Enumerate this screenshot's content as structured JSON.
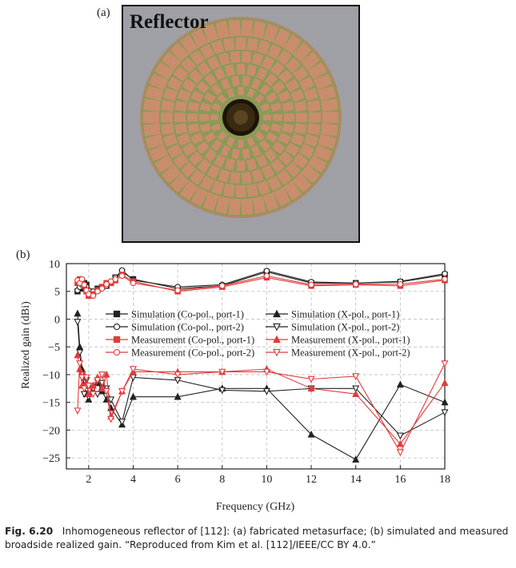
{
  "panel_a": {
    "label": "(a)",
    "title": "Reflector",
    "colors": {
      "copper": "#c98d6d",
      "substrate": "#8a9a55",
      "background": "#9ea0a6",
      "center": "#3a2a12"
    }
  },
  "panel_b": {
    "label": "(b)"
  },
  "chart_data": {
    "type": "line",
    "xlabel": "Frequency (GHz)",
    "ylabel": "Realized gain (dBi)",
    "xlim": [
      1,
      18
    ],
    "ylim": [
      -27,
      10
    ],
    "xticks": [
      2,
      4,
      6,
      8,
      10,
      12,
      14,
      16,
      18
    ],
    "yticks": [
      10,
      5,
      0,
      -5,
      -10,
      -15,
      -20,
      -25
    ],
    "grid": true,
    "legend_position": "center",
    "series": [
      {
        "name": "Simulation (Co-pol., port-1)",
        "color": "#222222",
        "marker": "square-filled",
        "x": [
          1.5,
          1.6,
          1.7,
          1.8,
          1.9,
          2.0,
          2.2,
          2.4,
          2.6,
          2.8,
          3.0,
          3.2,
          3.5,
          4,
          6,
          8,
          10,
          12,
          14,
          16,
          18
        ],
        "y": [
          5.0,
          6.0,
          5.5,
          6.5,
          6.2,
          5.0,
          4.8,
          5.5,
          5.8,
          6.0,
          6.5,
          7.5,
          8.5,
          7.2,
          5.5,
          6.0,
          8.5,
          6.5,
          6.5,
          6.7,
          8.0
        ]
      },
      {
        "name": "Simulation (Co-pol., port-2)",
        "color": "#222222",
        "marker": "circle-open",
        "x": [
          1.5,
          1.6,
          1.7,
          1.8,
          1.9,
          2.0,
          2.2,
          2.4,
          2.6,
          2.8,
          3.0,
          3.2,
          3.5,
          4,
          6,
          8,
          10,
          12,
          14,
          16,
          18
        ],
        "y": [
          5.2,
          5.8,
          6.2,
          6.0,
          5.8,
          5.2,
          5.0,
          5.3,
          5.6,
          6.0,
          6.8,
          7.5,
          8.8,
          7.0,
          5.8,
          6.2,
          8.7,
          6.7,
          6.5,
          6.8,
          8.2
        ]
      },
      {
        "name": "Measurement (Co-pol., port-1)",
        "color": "#e23b3b",
        "marker": "square-filled",
        "x": [
          1.5,
          1.6,
          1.7,
          1.8,
          1.9,
          2.0,
          2.2,
          2.4,
          2.6,
          2.8,
          3.0,
          3.2,
          3.5,
          4,
          6,
          8,
          10,
          12,
          14,
          16,
          18
        ],
        "y": [
          6.5,
          7.2,
          6.8,
          6.0,
          5.0,
          4.2,
          4.5,
          5.2,
          5.8,
          6.5,
          6.5,
          7.0,
          8.0,
          6.8,
          5.0,
          5.8,
          7.5,
          6.0,
          6.2,
          6.0,
          7.0
        ]
      },
      {
        "name": "Measurement (Co-pol., port-2)",
        "color": "#e23b3b",
        "marker": "circle-open",
        "x": [
          1.5,
          1.6,
          1.7,
          1.8,
          1.9,
          2.0,
          2.2,
          2.4,
          2.6,
          2.8,
          3.0,
          3.2,
          3.5,
          4,
          6,
          8,
          10,
          12,
          14,
          16,
          18
        ],
        "y": [
          7.0,
          6.5,
          7.2,
          6.2,
          5.2,
          4.5,
          4.2,
          5.0,
          5.5,
          6.3,
          6.8,
          7.2,
          7.8,
          6.5,
          5.2,
          6.0,
          7.8,
          6.2,
          6.3,
          6.3,
          7.2
        ]
      },
      {
        "name": "Simulation (X-pol., port-1)",
        "color": "#222222",
        "marker": "triangle-up-filled",
        "x": [
          1.5,
          1.6,
          1.7,
          1.8,
          1.9,
          2.0,
          2.2,
          2.4,
          2.6,
          2.8,
          3.0,
          3.5,
          4,
          6,
          8,
          10,
          12,
          14,
          16,
          18
        ],
        "y": [
          1.0,
          -5.0,
          -9.0,
          -12.0,
          -13.5,
          -14.5,
          -12.0,
          -11.5,
          -13.0,
          -14.5,
          -16.0,
          -19.0,
          -14.0,
          -14.0,
          -12.5,
          -12.5,
          -20.8,
          -25.3,
          -11.8,
          -15.0
        ]
      },
      {
        "name": "Simulation (X-pol., port-2)",
        "color": "#222222",
        "marker": "triangle-down-open",
        "x": [
          1.5,
          1.6,
          1.7,
          1.8,
          1.9,
          2.0,
          2.2,
          2.4,
          2.6,
          2.8,
          3.0,
          3.5,
          4,
          6,
          8,
          10,
          12,
          14,
          16,
          18
        ],
        "y": [
          -0.5,
          -6.0,
          -10.0,
          -13.5,
          -11.0,
          -14.0,
          -12.5,
          -13.5,
          -11.5,
          -12.5,
          -14.5,
          -18.5,
          -10.5,
          -11.0,
          -12.8,
          -13.0,
          -12.5,
          -12.5,
          -21.0,
          -16.8
        ]
      },
      {
        "name": "Measurement (X-pol., port-1)",
        "color": "#e23b3b",
        "marker": "triangle-up-filled",
        "x": [
          1.5,
          1.6,
          1.7,
          1.8,
          1.9,
          2.0,
          2.2,
          2.4,
          2.6,
          2.8,
          3.0,
          3.5,
          4,
          6,
          8,
          10,
          12,
          14,
          16,
          18
        ],
        "y": [
          -6.5,
          -9.0,
          -12.0,
          -10.0,
          -11.5,
          -13.5,
          -12.0,
          -10.5,
          -12.5,
          -10.0,
          -17.5,
          -13.0,
          -9.5,
          -9.5,
          -9.5,
          -9.0,
          -12.5,
          -13.5,
          -22.5,
          -11.5
        ]
      },
      {
        "name": "Measurement (X-pol., port-2)",
        "color": "#e23b3b",
        "marker": "triangle-down-open",
        "x": [
          1.5,
          1.6,
          1.7,
          1.8,
          1.9,
          2.0,
          2.2,
          2.4,
          2.6,
          2.8,
          3.0,
          3.5,
          4,
          6,
          8,
          10,
          12,
          14,
          16,
          18
        ],
        "y": [
          -16.5,
          -8.0,
          -10.5,
          -12.5,
          -10.5,
          -12.0,
          -13.5,
          -11.0,
          -10.0,
          -13.0,
          -18.0,
          -13.0,
          -9.0,
          -10.0,
          -9.5,
          -9.5,
          -10.8,
          -10.3,
          -24.0,
          -8.0
        ]
      }
    ]
  },
  "caption": {
    "fig_label": "Fig. 6.20",
    "text": "Inhomogeneous reflector of [112]: (a) fabricated metasurface; (b) simulated and measured broadside realized gain. “Reproduced from Kim et al. [112]/IEEE/CC BY 4.0.”"
  }
}
